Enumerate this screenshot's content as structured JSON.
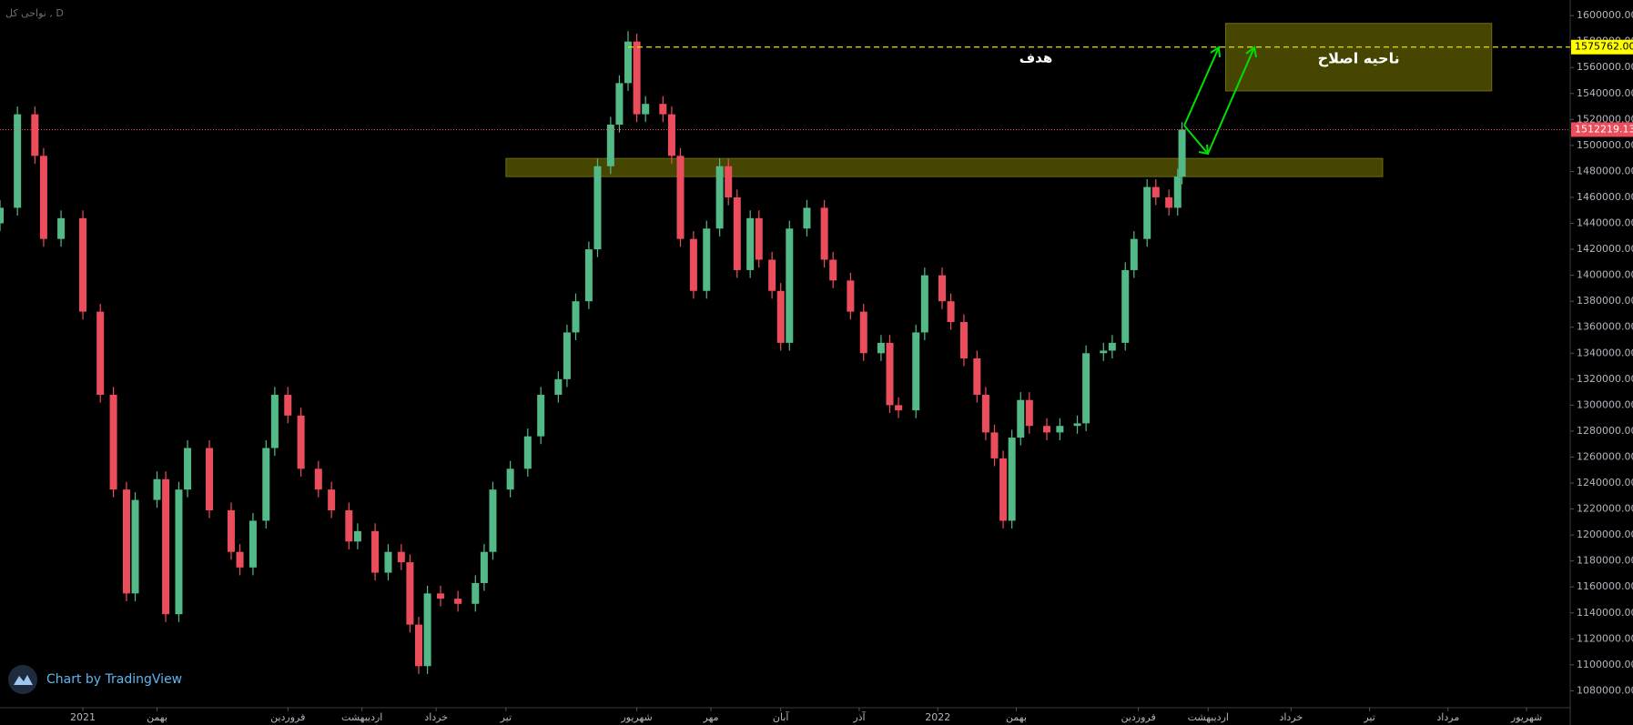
{
  "chart_data": {
    "type": "candlestick",
    "symbol": "نواحی کل , D",
    "watermark": "Chart by TradingView",
    "x": [
      0,
      4,
      8,
      10,
      14,
      19,
      23,
      26,
      29,
      31,
      36,
      38,
      41,
      43,
      48,
      53,
      55,
      58,
      61,
      63,
      66,
      69,
      73,
      76,
      80,
      82,
      86,
      89,
      92,
      94,
      96,
      98,
      101,
      105,
      109,
      111,
      113,
      117,
      121,
      124,
      128,
      130,
      132,
      135,
      137,
      140,
      142,
      144,
      146,
      148,
      152,
      154,
      156,
      159,
      162,
      165,
      167,
      169,
      172,
      174,
      177,
      179,
      181,
      185,
      189,
      191,
      195,
      198,
      202,
      204,
      206,
      210,
      212,
      216,
      218,
      221,
      224,
      226,
      228,
      230,
      232,
      234,
      236,
      240,
      243,
      247,
      249,
      253,
      255,
      258,
      260,
      263,
      265,
      268,
      270,
      271
    ],
    "open": [
      1440000,
      1452000,
      1524000,
      1492000,
      1428000,
      1444000,
      1372000,
      1308000,
      1235000,
      1155000,
      1227000,
      1243000,
      1139000,
      1235000,
      1267000,
      1219000,
      1187000,
      1175000,
      1211000,
      1267000,
      1308000,
      1292000,
      1251000,
      1235000,
      1219000,
      1195000,
      1203000,
      1171000,
      1187000,
      1179000,
      1131000,
      1099000,
      1155000,
      1151000,
      1147000,
      1163000,
      1187000,
      1235000,
      1251000,
      1276000,
      1308000,
      1320000,
      1356000,
      1380000,
      1420000,
      1484000,
      1516000,
      1548000,
      1580000,
      1524000,
      1532000,
      1524000,
      1492000,
      1428000,
      1388000,
      1436000,
      1484000,
      1460000,
      1404000,
      1444000,
      1412000,
      1388000,
      1348000,
      1436000,
      1452000,
      1412000,
      1396000,
      1372000,
      1340000,
      1348000,
      1300000,
      1296000,
      1356000,
      1400000,
      1380000,
      1364000,
      1336000,
      1308000,
      1279000,
      1259000,
      1211000,
      1275000,
      1304000,
      1284000,
      1279000,
      1284000,
      1286000,
      1340000,
      1342000,
      1348000,
      1404000,
      1428000,
      1468000,
      1460000,
      1452000,
      1476000
    ],
    "high": [
      1458000,
      1530000,
      1530000,
      1498000,
      1450000,
      1450000,
      1378000,
      1314000,
      1241000,
      1233000,
      1249000,
      1249000,
      1241000,
      1273000,
      1273000,
      1225000,
      1193000,
      1217000,
      1273000,
      1314000,
      1314000,
      1298000,
      1257000,
      1241000,
      1225000,
      1209000,
      1209000,
      1193000,
      1193000,
      1185000,
      1137000,
      1161000,
      1161000,
      1157000,
      1169000,
      1193000,
      1241000,
      1257000,
      1282000,
      1314000,
      1326000,
      1362000,
      1386000,
      1426000,
      1490000,
      1522000,
      1554000,
      1588000,
      1586000,
      1538000,
      1538000,
      1530000,
      1498000,
      1434000,
      1442000,
      1490000,
      1490000,
      1466000,
      1450000,
      1450000,
      1418000,
      1394000,
      1442000,
      1458000,
      1458000,
      1418000,
      1402000,
      1378000,
      1354000,
      1354000,
      1306000,
      1362000,
      1406000,
      1406000,
      1386000,
      1370000,
      1342000,
      1314000,
      1285000,
      1265000,
      1281000,
      1310000,
      1310000,
      1290000,
      1290000,
      1292000,
      1346000,
      1348000,
      1354000,
      1410000,
      1434000,
      1474000,
      1474000,
      1466000,
      1482000,
      1518000
    ],
    "low": [
      1434000,
      1446000,
      1486000,
      1422000,
      1422000,
      1366000,
      1302000,
      1229000,
      1149000,
      1149000,
      1221000,
      1133000,
      1133000,
      1229000,
      1213000,
      1181000,
      1169000,
      1169000,
      1205000,
      1261000,
      1286000,
      1245000,
      1229000,
      1213000,
      1189000,
      1189000,
      1165000,
      1165000,
      1173000,
      1125000,
      1093000,
      1093000,
      1145000,
      1141000,
      1141000,
      1157000,
      1181000,
      1229000,
      1245000,
      1270000,
      1302000,
      1314000,
      1350000,
      1374000,
      1414000,
      1478000,
      1510000,
      1542000,
      1518000,
      1518000,
      1518000,
      1486000,
      1422000,
      1382000,
      1382000,
      1430000,
      1454000,
      1398000,
      1398000,
      1406000,
      1382000,
      1342000,
      1342000,
      1430000,
      1406000,
      1390000,
      1366000,
      1334000,
      1334000,
      1294000,
      1290000,
      1290000,
      1350000,
      1374000,
      1358000,
      1330000,
      1302000,
      1273000,
      1253000,
      1205000,
      1205000,
      1269000,
      1278000,
      1273000,
      1273000,
      1278000,
      1280000,
      1334000,
      1336000,
      1342000,
      1398000,
      1422000,
      1454000,
      1446000,
      1446000,
      1470000
    ],
    "close": [
      1452000,
      1524000,
      1492000,
      1428000,
      1444000,
      1372000,
      1308000,
      1235000,
      1155000,
      1227000,
      1243000,
      1139000,
      1235000,
      1267000,
      1219000,
      1187000,
      1175000,
      1211000,
      1267000,
      1308000,
      1292000,
      1251000,
      1235000,
      1219000,
      1195000,
      1203000,
      1171000,
      1187000,
      1179000,
      1131000,
      1099000,
      1155000,
      1151000,
      1147000,
      1163000,
      1187000,
      1235000,
      1251000,
      1276000,
      1308000,
      1320000,
      1356000,
      1380000,
      1420000,
      1484000,
      1516000,
      1548000,
      1580000,
      1524000,
      1532000,
      1524000,
      1492000,
      1428000,
      1388000,
      1436000,
      1484000,
      1460000,
      1404000,
      1444000,
      1412000,
      1388000,
      1348000,
      1436000,
      1452000,
      1412000,
      1396000,
      1372000,
      1340000,
      1348000,
      1300000,
      1296000,
      1356000,
      1400000,
      1380000,
      1364000,
      1336000,
      1308000,
      1279000,
      1259000,
      1211000,
      1275000,
      1304000,
      1284000,
      1279000,
      1284000,
      1286000,
      1340000,
      1342000,
      1348000,
      1404000,
      1428000,
      1468000,
      1460000,
      1452000,
      1476000,
      1512219.13
    ],
    "up_color": "#53b987",
    "down_color": "#eb4d5c",
    "xlim": [
      0,
      360
    ],
    "xticks": [
      {
        "value": 19,
        "label": "2021"
      },
      {
        "value": 36,
        "label": "بهمن"
      },
      {
        "value": 66,
        "label": "فروردین"
      },
      {
        "value": 83,
        "label": "اردیبهشت"
      },
      {
        "value": 100,
        "label": "خرداد"
      },
      {
        "value": 116,
        "label": "تیر"
      },
      {
        "value": 146,
        "label": "شهریور"
      },
      {
        "value": 163,
        "label": "مهر"
      },
      {
        "value": 179,
        "label": "آبان"
      },
      {
        "value": 197,
        "label": "آذر"
      },
      {
        "value": 215,
        "label": "2022"
      },
      {
        "value": 233,
        "label": "بهمن"
      },
      {
        "value": 261,
        "label": "فروردین"
      },
      {
        "value": 277,
        "label": "اردیبهشت"
      },
      {
        "value": 296,
        "label": "خرداد"
      },
      {
        "value": 314,
        "label": "تیر"
      },
      {
        "value": 332,
        "label": "مرداد"
      },
      {
        "value": 350,
        "label": "شهریور"
      }
    ],
    "ylim": [
      1067000,
      1612000
    ],
    "yticks": [
      {
        "value": 1080000,
        "label": "1080000.00"
      },
      {
        "value": 1100000,
        "label": "1100000.00"
      },
      {
        "value": 1120000,
        "label": "1120000.00"
      },
      {
        "value": 1140000,
        "label": "1140000.00"
      },
      {
        "value": 1160000,
        "label": "1160000.00"
      },
      {
        "value": 1180000,
        "label": "1180000.00"
      },
      {
        "value": 1200000,
        "label": "1200000.00"
      },
      {
        "value": 1220000,
        "label": "1220000.00"
      },
      {
        "value": 1240000,
        "label": "1240000.00"
      },
      {
        "value": 1260000,
        "label": "1260000.00"
      },
      {
        "value": 1280000,
        "label": "1280000.00"
      },
      {
        "value": 1300000,
        "label": "1300000.00"
      },
      {
        "value": 1320000,
        "label": "1320000.00"
      },
      {
        "value": 1340000,
        "label": "1340000.00"
      },
      {
        "value": 1360000,
        "label": "1360000.00"
      },
      {
        "value": 1380000,
        "label": "1380000.00"
      },
      {
        "value": 1400000,
        "label": "1400000.00"
      },
      {
        "value": 1420000,
        "label": "1420000.00"
      },
      {
        "value": 1440000,
        "label": "1440000.00"
      },
      {
        "value": 1460000,
        "label": "1460000.00"
      },
      {
        "value": 1480000,
        "label": "1480000.00"
      },
      {
        "value": 1500000,
        "label": "1500000.00"
      },
      {
        "value": 1520000,
        "label": "1520000.00"
      },
      {
        "value": 1540000,
        "label": "1540000.00"
      },
      {
        "value": 1560000,
        "label": "1560000.00"
      },
      {
        "value": 1580000,
        "label": "1580000.00"
      },
      {
        "value": 1600000,
        "label": "1600000.00"
      }
    ],
    "last_price": 1512219.13,
    "target": {
      "value": 1575762,
      "label": "1575762.00",
      "from_x": 144,
      "text": "هدف"
    },
    "zones": [
      {
        "low": 1476000,
        "high": 1490000,
        "x0": 116,
        "x1": 317
      },
      {
        "low": 1542000,
        "high": 1594000,
        "x0": 281,
        "x1": 342,
        "label": "ناحیه اصلاح"
      }
    ]
  }
}
